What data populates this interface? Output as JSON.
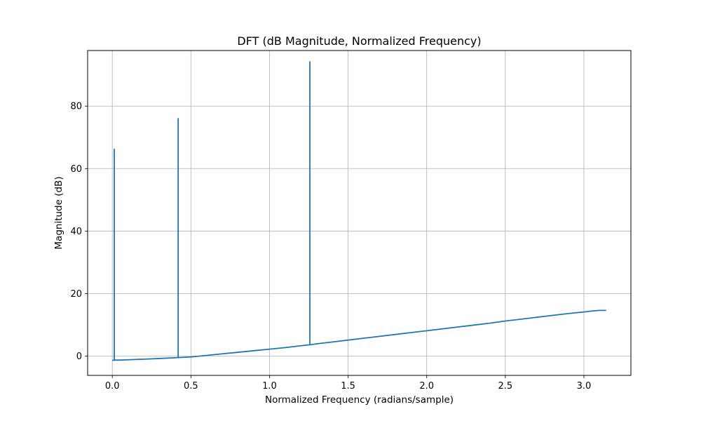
{
  "chart_data": {
    "type": "line",
    "title": "DFT (dB Magnitude, Normalized Frequency)",
    "xlabel": "Normalized Frequency (radians/sample)",
    "ylabel": "Magnitude (dB)",
    "xlim": [
      -0.157,
      3.299
    ],
    "ylim": [
      -6.2,
      97.8
    ],
    "xticks": [
      {
        "value": 0.0,
        "label": "0.0"
      },
      {
        "value": 0.5,
        "label": "0.5"
      },
      {
        "value": 1.0,
        "label": "1.0"
      },
      {
        "value": 1.5,
        "label": "1.5"
      },
      {
        "value": 2.0,
        "label": "2.0"
      },
      {
        "value": 2.5,
        "label": "2.5"
      },
      {
        "value": 3.0,
        "label": "3.0"
      }
    ],
    "yticks": [
      {
        "value": 0,
        "label": "0"
      },
      {
        "value": 20,
        "label": "20"
      },
      {
        "value": 40,
        "label": "40"
      },
      {
        "value": 60,
        "label": "60"
      },
      {
        "value": 80,
        "label": "80"
      }
    ],
    "grid": true,
    "legend": "none",
    "series": [
      {
        "color": "#1f77b4",
        "x": [
          0.0,
          0.0126,
          0.0126,
          0.0126,
          0.05,
          0.1,
          0.2,
          0.3,
          0.4189,
          0.4189,
          0.4189,
          0.5,
          0.6,
          0.7,
          0.8,
          0.9,
          1.0,
          1.1,
          1.2,
          1.2566,
          1.2566,
          1.2566,
          1.3,
          1.4,
          1.5,
          1.6,
          1.7,
          1.8,
          1.9,
          2.0,
          2.1,
          2.2,
          2.3,
          2.4,
          2.5,
          2.6,
          2.7,
          2.8,
          2.9,
          3.0,
          3.05,
          3.1,
          3.1416
        ],
        "y": [
          -1.4,
          -1.3,
          66.2,
          -1.3,
          -1.3,
          -1.2,
          -1.0,
          -0.8,
          -0.5,
          76.0,
          -0.5,
          -0.3,
          0.2,
          0.7,
          1.2,
          1.7,
          2.2,
          2.7,
          3.3,
          3.6,
          94.2,
          3.6,
          3.9,
          4.5,
          5.1,
          5.7,
          6.3,
          6.9,
          7.5,
          8.1,
          8.7,
          9.3,
          9.9,
          10.5,
          11.2,
          11.8,
          12.4,
          13.0,
          13.6,
          14.1,
          14.4,
          14.6,
          14.6
        ]
      }
    ]
  }
}
